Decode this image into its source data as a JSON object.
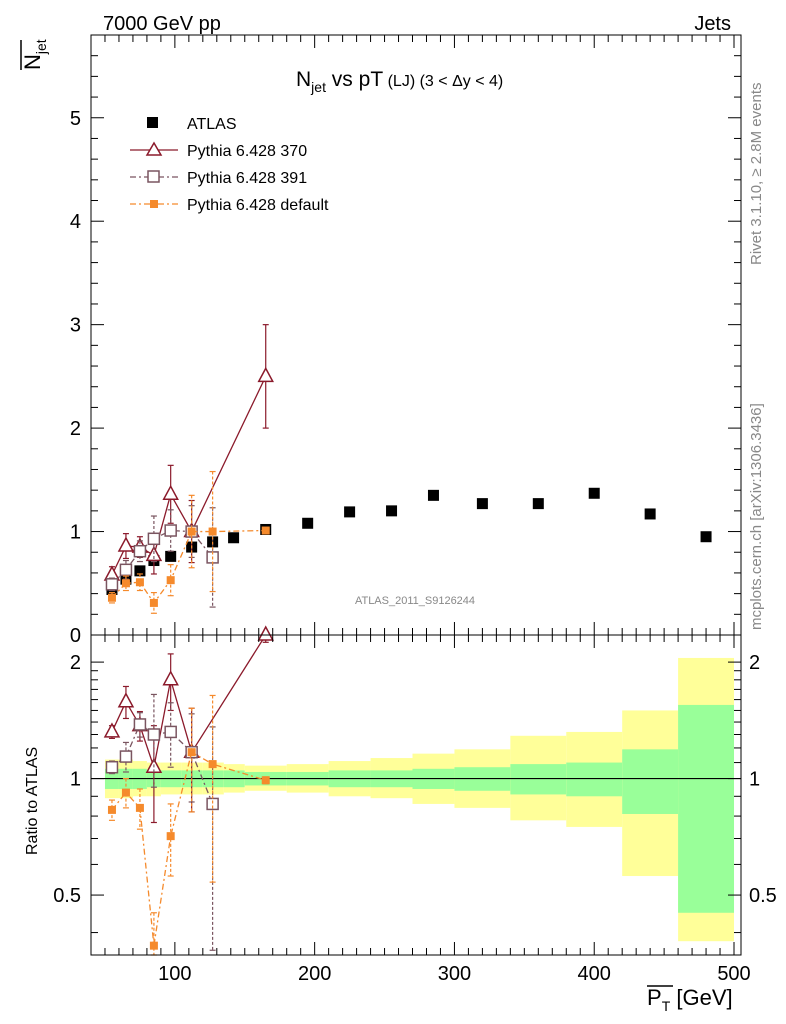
{
  "header": {
    "left": "7000 GeV pp",
    "right": "Jets"
  },
  "side_labels": {
    "rivet": "Rivet 3.1.10, ≥ 2.8M events",
    "mcplots": "mcplots.cern.ch [arXiv:1306.3436]"
  },
  "watermark": "ATLAS_2011_S9126244",
  "colors": {
    "atlas": "#000000",
    "p370": "#8b1a2b",
    "p391": "#7a5560",
    "pdef": "#f58a2c",
    "band_inner": "#99ff99",
    "band_outer": "#ffff99"
  },
  "chart_data": [
    {
      "type": "scatter",
      "title": "N_jet vs pT (LJ) (3 < Δy < 4)",
      "title_parts": {
        "main": "N",
        "sub": "jet",
        "rest": " vs pT",
        "small": " (LJ) (3 < Δy < 4)"
      },
      "ylabel": "N_jet (overlined)",
      "ylabel_parts": {
        "main": "N",
        "sub": "jet"
      },
      "xlim": [
        40,
        505
      ],
      "ylim": [
        0,
        5.8
      ],
      "y_ticks": [
        0,
        1,
        2,
        3,
        4,
        5
      ],
      "y_tick_labels": [
        "0",
        "1",
        "2",
        "3",
        "4",
        "5"
      ],
      "legend": [
        "ATLAS",
        "Pythia 6.428 370",
        "Pythia 6.428 391",
        "Pythia 6.428 default"
      ],
      "legend_position": "top-left",
      "series": [
        {
          "name": "ATLAS",
          "x": [
            55,
            65,
            75,
            85,
            97,
            112,
            127,
            142,
            165,
            195,
            225,
            255,
            285,
            320,
            360,
            400,
            440,
            480
          ],
          "y": [
            0.44,
            0.54,
            0.62,
            0.72,
            0.76,
            0.85,
            0.9,
            0.94,
            1.02,
            1.08,
            1.19,
            1.2,
            1.35,
            1.27,
            1.27,
            1.37,
            1.17,
            0.95
          ]
        },
        {
          "name": "Pythia 6.428 370",
          "x": [
            55,
            65,
            75,
            85,
            97,
            112,
            165
          ],
          "y": [
            0.58,
            0.86,
            0.85,
            0.77,
            1.36,
            1.0,
            2.5
          ],
          "err": [
            0.08,
            0.12,
            0.1,
            0.18,
            0.28,
            0.3,
            0.5
          ]
        },
        {
          "name": "Pythia 6.428 391",
          "x": [
            55,
            65,
            75,
            85,
            97,
            112,
            127
          ],
          "y": [
            0.49,
            0.63,
            0.81,
            0.93,
            1.01,
            1.0,
            0.75
          ],
          "err": [
            0.06,
            0.09,
            0.1,
            0.22,
            0.2,
            0.25,
            0.48
          ]
        },
        {
          "name": "Pythia 6.428 default",
          "x": [
            55,
            65,
            75,
            85,
            97,
            112,
            127,
            165
          ],
          "y": [
            0.36,
            0.5,
            0.51,
            0.31,
            0.53,
            1.0,
            1.0,
            1.01
          ],
          "err": [
            0.05,
            0.07,
            0.08,
            0.1,
            0.15,
            0.35,
            0.58,
            0.02
          ]
        }
      ]
    },
    {
      "type": "scatter",
      "title": "",
      "xlabel": "P_T [GeV] (overlined)",
      "xlabel_parts": {
        "main": "P",
        "sub": "T",
        "rest": " [GeV]"
      },
      "ylabel": "Ratio to ATLAS",
      "yscale": "log",
      "xlim": [
        40,
        505
      ],
      "ylim": [
        0.35,
        2.35
      ],
      "x_ticks": [
        100,
        200,
        300,
        400,
        500
      ],
      "x_tick_labels": [
        "100",
        "200",
        "300",
        "400",
        "500"
      ],
      "y_ticks": [
        0.5,
        1,
        2
      ],
      "y_tick_labels": [
        "0.5",
        "1",
        "2"
      ],
      "reference_line": 1,
      "uncertainty_bands": {
        "edges": [
          50,
          60,
          70,
          80,
          90,
          105,
          120,
          135,
          150,
          180,
          210,
          240,
          270,
          300,
          340,
          380,
          420,
          460,
          500
        ],
        "inner_lo": [
          0.94,
          0.94,
          0.94,
          0.95,
          0.95,
          0.95,
          0.95,
          0.95,
          0.96,
          0.96,
          0.95,
          0.95,
          0.94,
          0.93,
          0.91,
          0.9,
          0.81,
          0.45
        ],
        "inner_hi": [
          1.06,
          1.06,
          1.06,
          1.05,
          1.05,
          1.05,
          1.05,
          1.05,
          1.04,
          1.04,
          1.05,
          1.05,
          1.06,
          1.07,
          1.09,
          1.1,
          1.19,
          1.55
        ],
        "outer_lo": [
          0.89,
          0.89,
          0.9,
          0.9,
          0.91,
          0.91,
          0.91,
          0.92,
          0.93,
          0.92,
          0.9,
          0.89,
          0.86,
          0.84,
          0.78,
          0.75,
          0.56,
          0.38
        ],
        "outer_hi": [
          1.12,
          1.12,
          1.11,
          1.1,
          1.1,
          1.1,
          1.1,
          1.09,
          1.08,
          1.09,
          1.11,
          1.13,
          1.16,
          1.19,
          1.29,
          1.32,
          1.5,
          2.05
        ]
      },
      "series": [
        {
          "name": "Pythia 6.428 370",
          "x": [
            55,
            65,
            75,
            85,
            97,
            112,
            165
          ],
          "y": [
            1.32,
            1.58,
            1.37,
            1.07,
            1.8,
            1.17,
            2.35
          ],
          "err": [
            0.05,
            0.15,
            0.12,
            0.3,
            0.3,
            0.35,
            0.1
          ]
        },
        {
          "name": "Pythia 6.428 391",
          "x": [
            55,
            65,
            75,
            85,
            97,
            112,
            127
          ],
          "y": [
            1.07,
            1.14,
            1.38,
            1.3,
            1.32,
            1.17,
            0.86
          ],
          "err": [
            0.04,
            0.1,
            0.1,
            0.35,
            0.25,
            0.3,
            0.5
          ]
        },
        {
          "name": "Pythia 6.428 default",
          "x": [
            55,
            65,
            75,
            85,
            97,
            112,
            127,
            165
          ],
          "y": [
            0.83,
            0.92,
            0.84,
            0.37,
            0.71,
            1.17,
            1.09,
            0.99
          ],
          "err": [
            0.05,
            0.08,
            0.1,
            0.08,
            0.15,
            0.35,
            0.55,
            0.02
          ]
        }
      ]
    }
  ]
}
